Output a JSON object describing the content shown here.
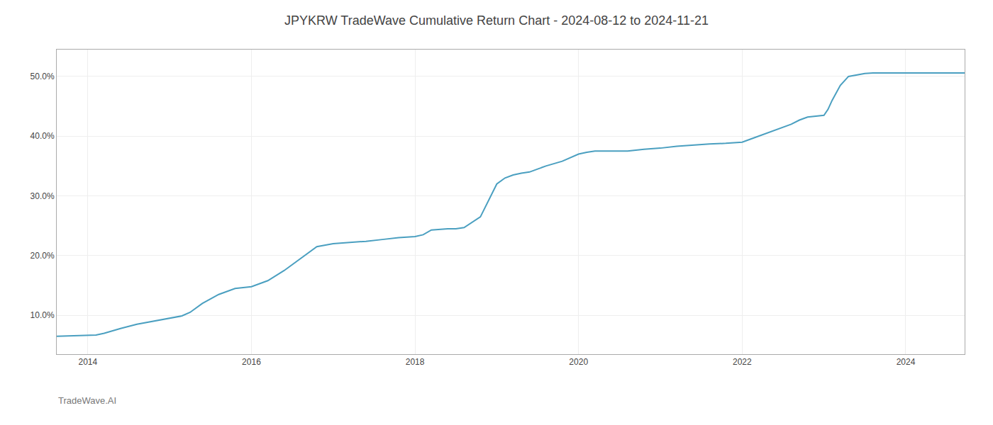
{
  "chart_data": {
    "type": "line",
    "title": "JPYKRW TradeWave Cumulative Return Chart - 2024-08-12 to 2024-11-21",
    "annotations": [
      "TradeWave.AI"
    ],
    "color": "#4a9fc0",
    "grid": true,
    "xlim": [
      2013.62,
      2024.72
    ],
    "xticks": [
      2014,
      2016,
      2018,
      2020,
      2022,
      2024
    ],
    "ylim": [
      3.5,
      54.5
    ],
    "yticks": [
      {
        "value": 10.0,
        "label": "10.0%"
      },
      {
        "value": 20.0,
        "label": "20.0%"
      },
      {
        "value": 30.0,
        "label": "30.0%"
      },
      {
        "value": 40.0,
        "label": "40.0%"
      },
      {
        "value": 50.0,
        "label": "50.0%"
      }
    ],
    "x": [
      2013.62,
      2014.0,
      2014.1,
      2014.2,
      2014.4,
      2014.6,
      2014.8,
      2015.0,
      2015.1,
      2015.15,
      2015.25,
      2015.4,
      2015.6,
      2015.8,
      2016.0,
      2016.2,
      2016.4,
      2016.6,
      2016.8,
      2017.0,
      2017.1,
      2017.2,
      2017.3,
      2017.4,
      2017.6,
      2017.8,
      2018.0,
      2018.1,
      2018.2,
      2018.4,
      2018.5,
      2018.6,
      2018.8,
      2019.0,
      2019.1,
      2019.2,
      2019.3,
      2019.4,
      2019.5,
      2019.6,
      2019.8,
      2020.0,
      2020.1,
      2020.2,
      2020.4,
      2020.6,
      2020.8,
      2021.0,
      2021.2,
      2021.4,
      2021.6,
      2021.8,
      2022.0,
      2022.1,
      2022.2,
      2022.3,
      2022.4,
      2022.5,
      2022.6,
      2022.7,
      2022.8,
      2023.0,
      2023.05,
      2023.1,
      2023.2,
      2023.3,
      2023.5,
      2023.6,
      2023.7,
      2023.8,
      2023.9,
      2024.0,
      2024.2,
      2024.4,
      2024.6,
      2024.72
    ],
    "values": [
      6.5,
      6.6,
      6.7,
      7.0,
      7.8,
      8.5,
      9.0,
      9.5,
      9.7,
      9.9,
      10.5,
      12.0,
      13.5,
      14.5,
      14.8,
      15.8,
      17.5,
      19.5,
      21.5,
      22.0,
      22.1,
      22.2,
      22.3,
      22.4,
      22.7,
      23.0,
      23.2,
      23.5,
      24.3,
      24.5,
      24.5,
      24.7,
      26.5,
      32.0,
      33.0,
      33.5,
      33.8,
      34.0,
      34.5,
      35.0,
      35.8,
      37.0,
      37.3,
      37.5,
      37.5,
      37.5,
      37.8,
      38.0,
      38.3,
      38.5,
      38.7,
      38.8,
      39.0,
      39.5,
      40.0,
      40.5,
      41.0,
      41.5,
      42.0,
      42.7,
      43.2,
      43.5,
      44.5,
      46.0,
      48.5,
      50.0,
      50.5,
      50.6,
      50.6,
      50.6,
      50.6,
      50.6,
      50.6,
      50.6,
      50.6,
      50.6
    ]
  }
}
